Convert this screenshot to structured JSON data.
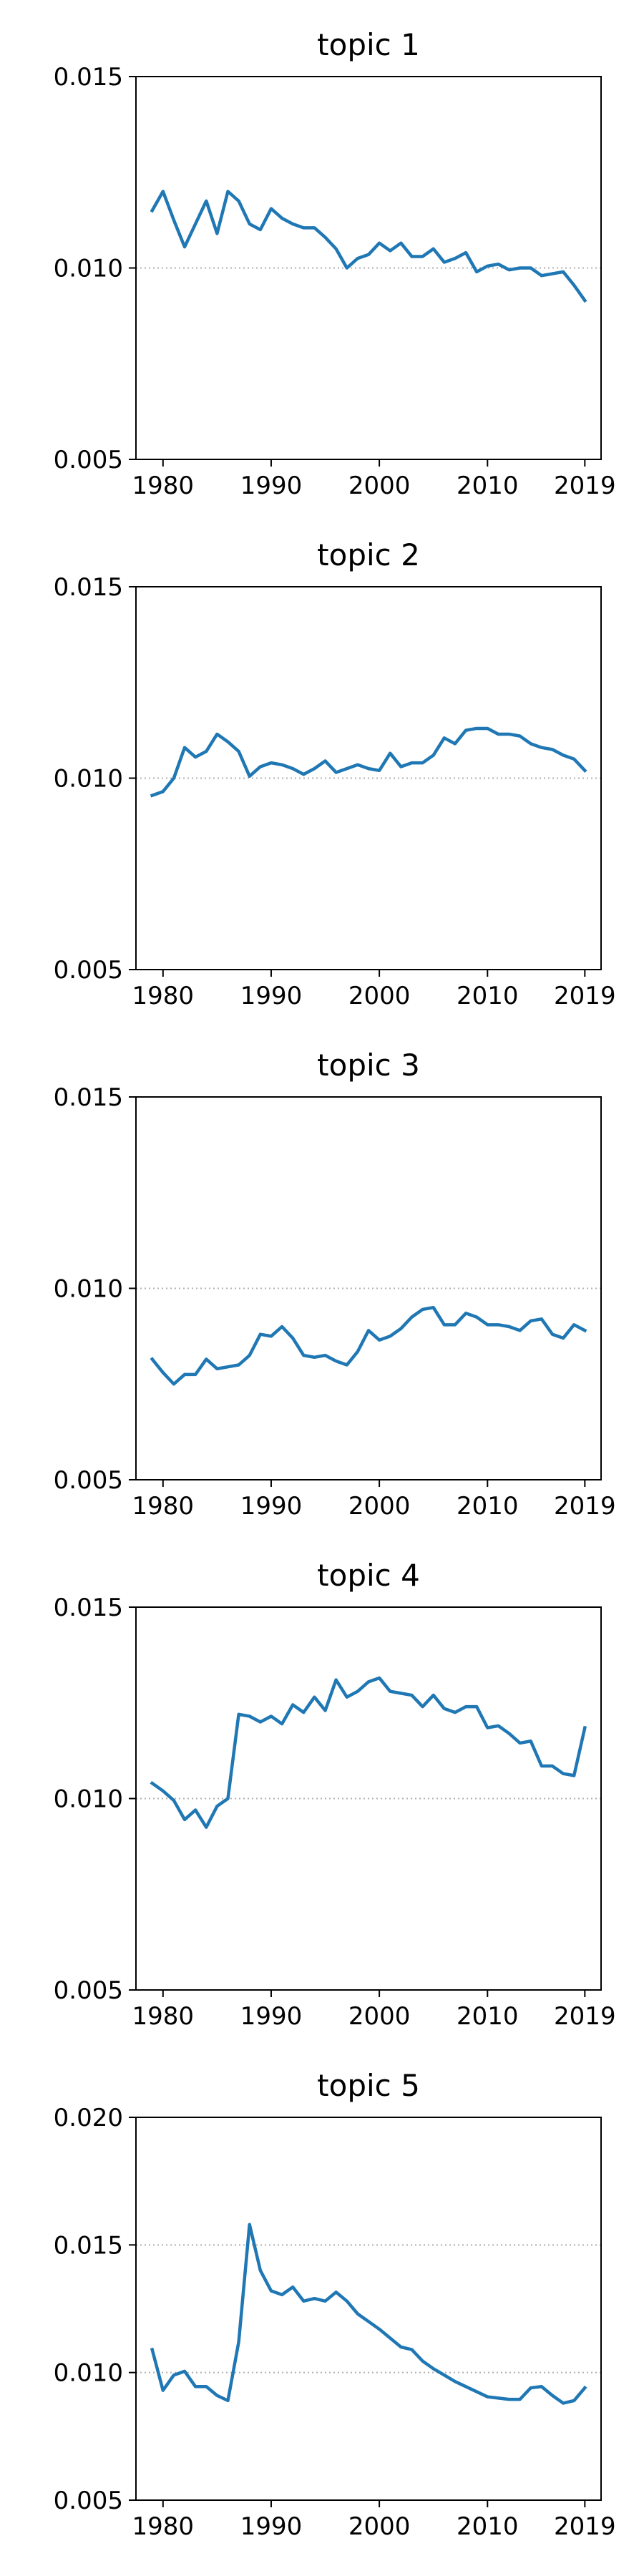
{
  "chart_data": [
    {
      "type": "line",
      "title": "topic 1",
      "xlabel": "",
      "ylabel": "",
      "xlim": [
        1977.5,
        2020.5
      ],
      "ylim": [
        0.005,
        0.015
      ],
      "yticks": [
        0.005,
        0.01,
        0.015
      ],
      "ytick_labels": [
        "0.005",
        "0.010",
        "0.015"
      ],
      "xticks": [
        1980,
        1990,
        2000,
        2010,
        2019
      ],
      "xtick_labels": [
        "1980",
        "1990",
        "2000",
        "2010",
        "2019"
      ],
      "reference_line": 0.01,
      "series": [
        {
          "x": [
            1979,
            1980,
            1981,
            1982,
            1983,
            1984,
            1985,
            1986,
            1987,
            1988,
            1989,
            1990,
            1991,
            1992,
            1993,
            1994,
            1995,
            1996,
            1997,
            1998,
            1999,
            2000,
            2001,
            2002,
            2003,
            2004,
            2005,
            2006,
            2007,
            2008,
            2009,
            2010,
            2011,
            2012,
            2013,
            2014,
            2015,
            2016,
            2017,
            2018,
            2019
          ],
          "values": [
            0.0115,
            0.012,
            0.01125,
            0.01055,
            0.01115,
            0.01175,
            0.0109,
            0.012,
            0.01175,
            0.01115,
            0.011,
            0.01155,
            0.0113,
            0.01115,
            0.01105,
            0.01105,
            0.0108,
            0.0105,
            0.01,
            0.01025,
            0.01035,
            0.01065,
            0.01045,
            0.01065,
            0.0103,
            0.0103,
            0.0105,
            0.01015,
            0.01025,
            0.0104,
            0.0099,
            0.01005,
            0.0101,
            0.00995,
            0.01,
            0.01,
            0.0098,
            0.00985,
            0.0099,
            0.00955,
            0.00915
          ]
        }
      ]
    },
    {
      "type": "line",
      "title": "topic 2",
      "xlabel": "",
      "ylabel": "",
      "xlim": [
        1977.5,
        2020.5
      ],
      "ylim": [
        0.005,
        0.015
      ],
      "yticks": [
        0.005,
        0.01,
        0.015
      ],
      "ytick_labels": [
        "0.005",
        "0.010",
        "0.015"
      ],
      "xticks": [
        1980,
        1990,
        2000,
        2010,
        2019
      ],
      "xtick_labels": [
        "1980",
        "1990",
        "2000",
        "2010",
        "2019"
      ],
      "reference_line": 0.01,
      "series": [
        {
          "x": [
            1979,
            1980,
            1981,
            1982,
            1983,
            1984,
            1985,
            1986,
            1987,
            1988,
            1989,
            1990,
            1991,
            1992,
            1993,
            1994,
            1995,
            1996,
            1997,
            1998,
            1999,
            2000,
            2001,
            2002,
            2003,
            2004,
            2005,
            2006,
            2007,
            2008,
            2009,
            2010,
            2011,
            2012,
            2013,
            2014,
            2015,
            2016,
            2017,
            2018,
            2019
          ],
          "values": [
            0.00955,
            0.00965,
            0.01,
            0.0108,
            0.01055,
            0.0107,
            0.01115,
            0.01095,
            0.0107,
            0.01005,
            0.0103,
            0.0104,
            0.01035,
            0.01025,
            0.0101,
            0.01025,
            0.01045,
            0.01015,
            0.01025,
            0.01035,
            0.01025,
            0.0102,
            0.01065,
            0.0103,
            0.0104,
            0.0104,
            0.0106,
            0.01105,
            0.0109,
            0.01125,
            0.0113,
            0.0113,
            0.01115,
            0.01115,
            0.0111,
            0.0109,
            0.0108,
            0.01075,
            0.0106,
            0.0105,
            0.0102
          ]
        }
      ]
    },
    {
      "type": "line",
      "title": "topic 3",
      "xlabel": "",
      "ylabel": "",
      "xlim": [
        1977.5,
        2020.5
      ],
      "ylim": [
        0.005,
        0.015
      ],
      "yticks": [
        0.005,
        0.01,
        0.015
      ],
      "ytick_labels": [
        "0.005",
        "0.010",
        "0.015"
      ],
      "xticks": [
        1980,
        1990,
        2000,
        2010,
        2019
      ],
      "xtick_labels": [
        "1980",
        "1990",
        "2000",
        "2010",
        "2019"
      ],
      "reference_line": 0.01,
      "series": [
        {
          "x": [
            1979,
            1980,
            1981,
            1982,
            1983,
            1984,
            1985,
            1986,
            1987,
            1988,
            1989,
            1990,
            1991,
            1992,
            1993,
            1994,
            1995,
            1996,
            1997,
            1998,
            1999,
            2000,
            2001,
            2002,
            2003,
            2004,
            2005,
            2006,
            2007,
            2008,
            2009,
            2010,
            2011,
            2012,
            2013,
            2014,
            2015,
            2016,
            2017,
            2018,
            2019
          ],
          "values": [
            0.00815,
            0.0078,
            0.0075,
            0.00775,
            0.00775,
            0.00815,
            0.0079,
            0.00795,
            0.008,
            0.00825,
            0.0088,
            0.00875,
            0.009,
            0.0087,
            0.00825,
            0.0082,
            0.00825,
            0.0081,
            0.008,
            0.00835,
            0.0089,
            0.00865,
            0.00875,
            0.00895,
            0.00925,
            0.00945,
            0.0095,
            0.00905,
            0.00905,
            0.00935,
            0.00925,
            0.00905,
            0.00905,
            0.009,
            0.0089,
            0.00915,
            0.0092,
            0.0088,
            0.0087,
            0.00905,
            0.0089
          ]
        }
      ]
    },
    {
      "type": "line",
      "title": "topic 4",
      "xlabel": "",
      "ylabel": "",
      "xlim": [
        1977.5,
        2020.5
      ],
      "ylim": [
        0.005,
        0.015
      ],
      "yticks": [
        0.005,
        0.01,
        0.015
      ],
      "ytick_labels": [
        "0.005",
        "0.010",
        "0.015"
      ],
      "xticks": [
        1980,
        1990,
        2000,
        2010,
        2019
      ],
      "xtick_labels": [
        "1980",
        "1990",
        "2000",
        "2010",
        "2019"
      ],
      "reference_line": 0.01,
      "series": [
        {
          "x": [
            1979,
            1980,
            1981,
            1982,
            1983,
            1984,
            1985,
            1986,
            1987,
            1988,
            1989,
            1990,
            1991,
            1992,
            1993,
            1994,
            1995,
            1996,
            1997,
            1998,
            1999,
            2000,
            2001,
            2002,
            2003,
            2004,
            2005,
            2006,
            2007,
            2008,
            2009,
            2010,
            2011,
            2012,
            2013,
            2014,
            2015,
            2016,
            2017,
            2018,
            2019
          ],
          "values": [
            0.0104,
            0.0102,
            0.00995,
            0.00945,
            0.0097,
            0.00925,
            0.0098,
            0.01,
            0.0122,
            0.01215,
            0.012,
            0.01215,
            0.01195,
            0.01245,
            0.01225,
            0.01265,
            0.0123,
            0.0131,
            0.01265,
            0.0128,
            0.01305,
            0.01315,
            0.0128,
            0.01275,
            0.0127,
            0.0124,
            0.0127,
            0.01235,
            0.01225,
            0.0124,
            0.0124,
            0.01185,
            0.0119,
            0.0117,
            0.01145,
            0.0115,
            0.01085,
            0.01085,
            0.01065,
            0.0106,
            0.01185
          ]
        }
      ]
    },
    {
      "type": "line",
      "title": "topic 5",
      "xlabel": "",
      "ylabel": "",
      "xlim": [
        1977.5,
        2020.5
      ],
      "ylim": [
        0.005,
        0.02
      ],
      "yticks": [
        0.005,
        0.01,
        0.015,
        0.02
      ],
      "ytick_labels": [
        "0.005",
        "0.010",
        "0.015",
        "0.020"
      ],
      "xticks": [
        1980,
        1990,
        2000,
        2010,
        2019
      ],
      "xtick_labels": [
        "1980",
        "1990",
        "2000",
        "2010",
        "2019"
      ],
      "reference_line": [
        0.01,
        0.015
      ],
      "series": [
        {
          "x": [
            1979,
            1980,
            1981,
            1982,
            1983,
            1984,
            1985,
            1986,
            1987,
            1988,
            1989,
            1990,
            1991,
            1992,
            1993,
            1994,
            1995,
            1996,
            1997,
            1998,
            1999,
            2000,
            2001,
            2002,
            2003,
            2004,
            2005,
            2006,
            2007,
            2008,
            2009,
            2010,
            2011,
            2012,
            2013,
            2014,
            2015,
            2016,
            2017,
            2018,
            2019
          ],
          "values": [
            0.0109,
            0.0093,
            0.0099,
            0.01005,
            0.00945,
            0.00945,
            0.0091,
            0.0089,
            0.0112,
            0.0158,
            0.014,
            0.0132,
            0.01305,
            0.01335,
            0.0128,
            0.0129,
            0.0128,
            0.01315,
            0.0128,
            0.0123,
            0.012,
            0.0117,
            0.01135,
            0.011,
            0.0109,
            0.01045,
            0.01015,
            0.0099,
            0.00965,
            0.00945,
            0.00925,
            0.00905,
            0.009,
            0.00895,
            0.00895,
            0.0094,
            0.00945,
            0.0091,
            0.0088,
            0.0089,
            0.0094
          ]
        }
      ]
    }
  ],
  "colors": {
    "line": "#1f77b4",
    "axes": "#000000",
    "reference_line": "#b0b0b0",
    "background": "#ffffff"
  }
}
